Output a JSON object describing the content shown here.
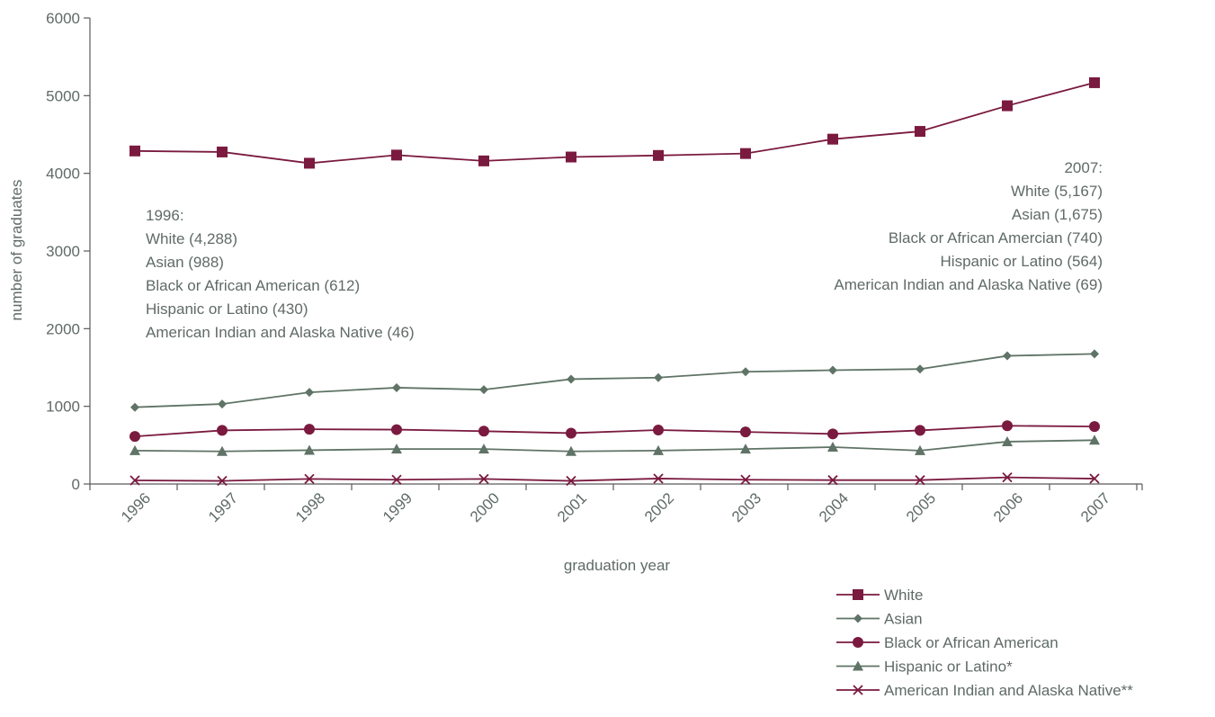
{
  "chart_data": {
    "type": "line",
    "xlabel": "graduation year",
    "ylabel": "number of graduates",
    "ylim": [
      0,
      6000
    ],
    "yticks": [
      0,
      1000,
      2000,
      3000,
      4000,
      5000,
      6000
    ],
    "x": [
      "1996",
      "1997",
      "1998",
      "1999",
      "2000",
      "2001",
      "2002",
      "2003",
      "2004",
      "2005",
      "2006",
      "2007"
    ],
    "grid": false,
    "legend_position": "bottom-right",
    "series": [
      {
        "name": "White",
        "marker": "square",
        "color": "#7a1a3f",
        "values": [
          4288,
          4275,
          4130,
          4235,
          4160,
          4210,
          4230,
          4255,
          4440,
          4540,
          4870,
          5167
        ]
      },
      {
        "name": "Asian",
        "marker": "diamond",
        "color": "#5f7366",
        "values": [
          988,
          1030,
          1180,
          1240,
          1215,
          1350,
          1370,
          1445,
          1465,
          1480,
          1650,
          1675
        ]
      },
      {
        "name": "Black or African American",
        "marker": "circle",
        "color": "#7a1a3f",
        "values": [
          612,
          690,
          705,
          700,
          680,
          655,
          695,
          670,
          645,
          690,
          750,
          740
        ]
      },
      {
        "name": "Hispanic or Latino*",
        "marker": "triangle",
        "color": "#5f7366",
        "values": [
          430,
          420,
          435,
          450,
          450,
          420,
          430,
          450,
          475,
          430,
          545,
          564
        ]
      },
      {
        "name": " American Indian and Alaska Native**",
        "marker": "x",
        "color": "#7a1a3f",
        "values": [
          46,
          40,
          65,
          55,
          65,
          40,
          70,
          55,
          50,
          50,
          85,
          69
        ]
      }
    ],
    "annotations": [
      {
        "lines": [
          "1996:",
          "White (4,288)",
          "Asian (988)",
          "Black or African American (612)",
          "Hispanic or Latino (430)",
          "American Indian and Alaska Native (46)"
        ],
        "align": "left"
      },
      {
        "lines": [
          "2007:",
          "White (5,167)",
          "Asian (1,675)",
          "Black or African Amercian (740)",
          "Hispanic or Latino (564)",
          "American Indian and Alaska Native (69)"
        ],
        "align": "right"
      }
    ],
    "colors": {
      "axis": "#5a5a5a",
      "text": "#5f6b66"
    }
  }
}
